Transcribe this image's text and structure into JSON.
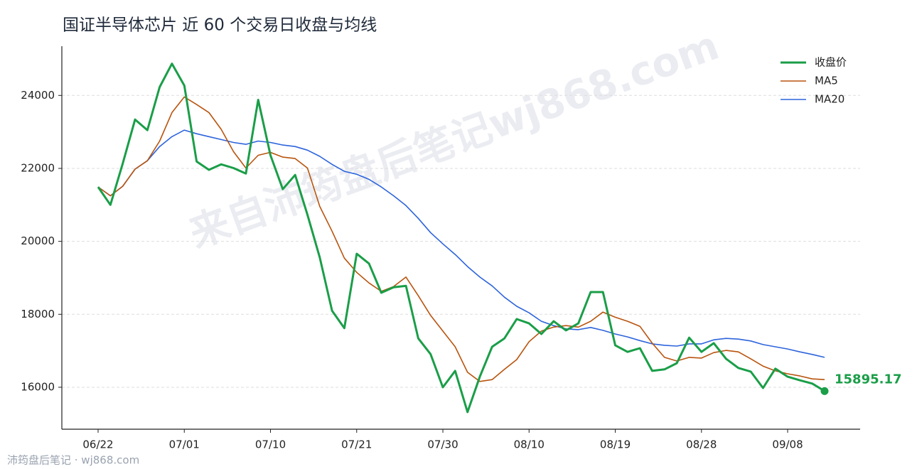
{
  "chart_data": {
    "type": "line",
    "title": "国证半导体芯片 近 60 个交易日收盘与均线",
    "categories": [
      "06/22",
      null,
      null,
      null,
      null,
      null,
      null,
      "07/01",
      null,
      null,
      null,
      null,
      null,
      null,
      "07/10",
      null,
      null,
      null,
      null,
      null,
      null,
      "07/21",
      null,
      null,
      null,
      null,
      null,
      null,
      "07/30",
      null,
      null,
      null,
      null,
      null,
      null,
      "08/10",
      null,
      null,
      null,
      null,
      null,
      null,
      "08/19",
      null,
      null,
      null,
      null,
      null,
      null,
      "08/28",
      null,
      null,
      null,
      null,
      null,
      null,
      "09/08",
      null,
      null,
      null
    ],
    "series": [
      {
        "name": "收盘价",
        "color": "#1a9e48",
        "width": 3,
        "values": [
          21490,
          21000,
          22130,
          23340,
          23050,
          24230,
          24870,
          24270,
          22190,
          21960,
          22110,
          22010,
          21860,
          23880,
          22360,
          21430,
          21820,
          20730,
          19560,
          18100,
          17620,
          19660,
          19390,
          18590,
          18740,
          18780,
          17340,
          16910,
          16000,
          16450,
          15320,
          16290,
          17110,
          17340,
          17870,
          17750,
          17460,
          17810,
          17560,
          17750,
          18610,
          18610,
          17150,
          16970,
          17070,
          16450,
          16490,
          16660,
          17360,
          16970,
          17210,
          16780,
          16530,
          16430,
          15980,
          16510,
          16290,
          16190,
          16100,
          15895.17
        ]
      },
      {
        "name": "MA5",
        "color": "#b8540e",
        "width": 1.6,
        "values": [
          21490,
          21250,
          21510,
          21980,
          22210,
          22750,
          23530,
          23960,
          23750,
          23530,
          23070,
          22460,
          22010,
          22360,
          22440,
          22310,
          22270,
          22010,
          20960,
          20280,
          19540,
          19150,
          18860,
          18630,
          18760,
          19020,
          18510,
          17970,
          17540,
          17110,
          16410,
          16160,
          16210,
          16490,
          16760,
          17250,
          17540,
          17650,
          17690,
          17650,
          17810,
          18060,
          17920,
          17810,
          17670,
          17210,
          16820,
          16720,
          16820,
          16800,
          16950,
          17010,
          16970,
          16780,
          16580,
          16450,
          16370,
          16310,
          16230,
          16210
        ]
      },
      {
        "name": "MA20",
        "color": "#2d64dc",
        "width": 1.6,
        "values": [
          21490,
          21250,
          21510,
          21980,
          22210,
          22600,
          22870,
          23050,
          22950,
          22870,
          22790,
          22710,
          22660,
          22750,
          22710,
          22640,
          22600,
          22500,
          22330,
          22110,
          21920,
          21840,
          21700,
          21490,
          21250,
          20980,
          20630,
          20240,
          19930,
          19640,
          19310,
          19020,
          18780,
          18470,
          18220,
          18040,
          17810,
          17690,
          17600,
          17580,
          17640,
          17560,
          17460,
          17380,
          17280,
          17190,
          17150,
          17130,
          17190,
          17190,
          17300,
          17340,
          17320,
          17270,
          17170,
          17110,
          17050,
          16970,
          16900,
          16820
        ]
      }
    ],
    "ylim": [
      14850,
      25350
    ],
    "yticks": [
      16000,
      18000,
      20000,
      22000,
      24000
    ],
    "grid": true,
    "legend": "upper right",
    "watermark": "来自沛筠盘后笔记wj868.com",
    "footer": "沛筠盘后笔记 · wj868.com"
  }
}
